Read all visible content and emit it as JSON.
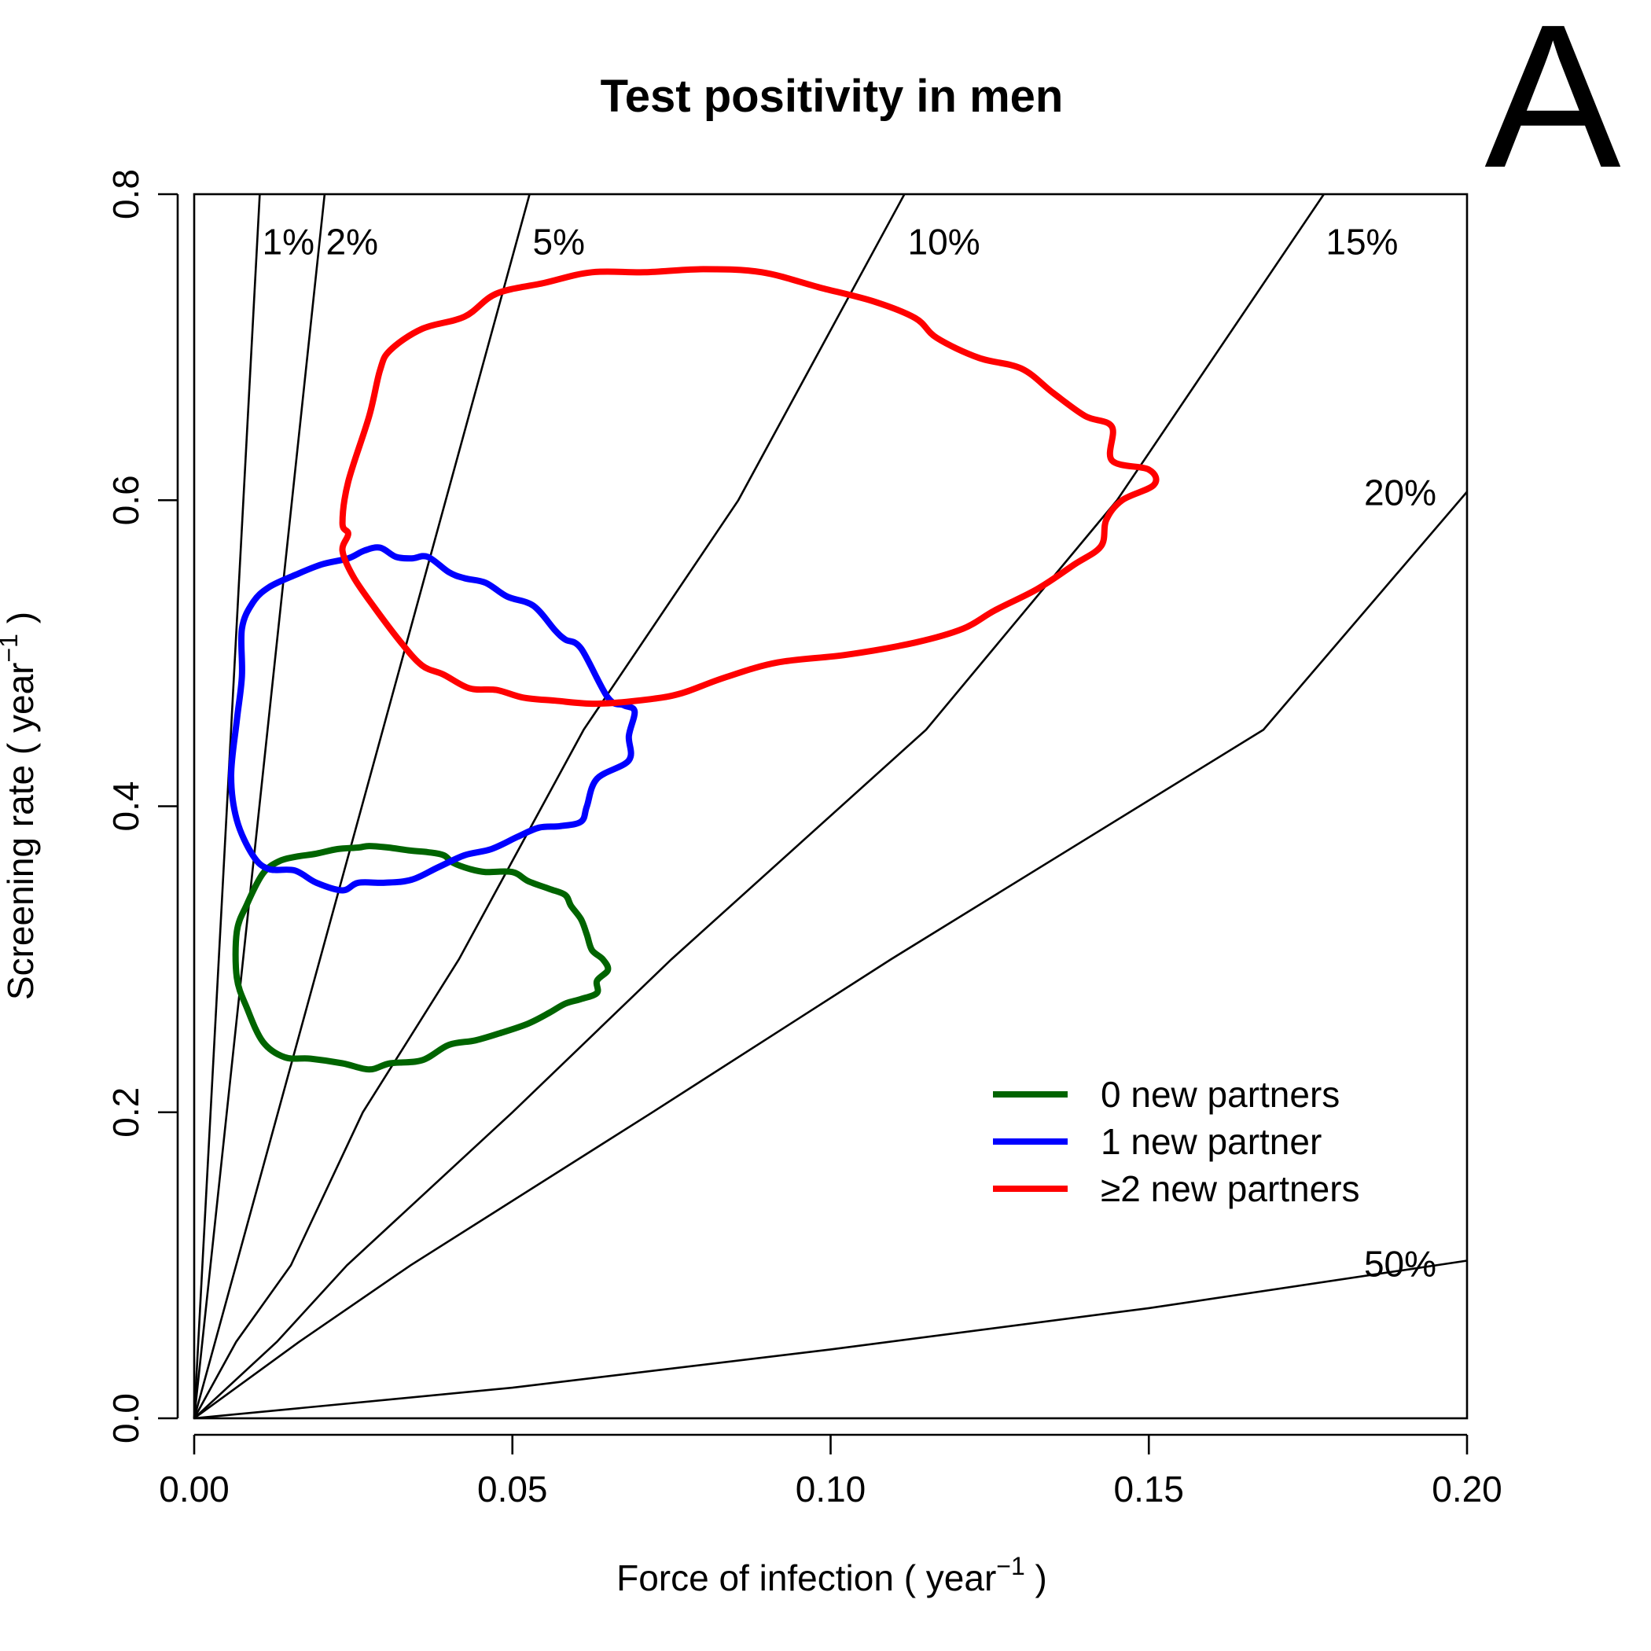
{
  "chart_data": {
    "type": "line",
    "title": "Test positivity in men",
    "panel_label": "A",
    "xlabel": "Force of infection ( year",
    "ylabel": "Screening rate ( year",
    "label_superscript": "−1",
    "label_close": " )",
    "xlim": [
      0,
      0.2
    ],
    "ylim": [
      0,
      0.8
    ],
    "xticks": [
      {
        "value": 0.0,
        "label": "0.00"
      },
      {
        "value": 0.05,
        "label": "0.05"
      },
      {
        "value": 0.1,
        "label": "0.10"
      },
      {
        "value": 0.15,
        "label": "0.15"
      },
      {
        "value": 0.2,
        "label": "0.20"
      }
    ],
    "yticks": [
      {
        "value": 0.0,
        "label": "0.0"
      },
      {
        "value": 0.2,
        "label": "0.2"
      },
      {
        "value": 0.4,
        "label": "0.4"
      },
      {
        "value": 0.6,
        "label": "0.6"
      },
      {
        "value": 0.8,
        "label": "0.8"
      }
    ],
    "grid": false,
    "legend_position": "bottom-right",
    "positivity_lines": [
      {
        "label": "1%",
        "x": [
          0,
          0.0103
        ],
        "y": [
          0,
          0.8
        ],
        "label_x": 0.0148,
        "label_y": 0.769
      },
      {
        "label": "2%",
        "x": [
          0,
          0.0205
        ],
        "y": [
          0,
          0.8
        ],
        "label_x": 0.0248,
        "label_y": 0.769
      },
      {
        "label": "5%",
        "x": [
          0,
          0.0527
        ],
        "y": [
          0,
          0.8
        ],
        "label_x": 0.0573,
        "label_y": 0.769
      },
      {
        "label": "10%",
        "x": [
          0,
          0.0066,
          0.0152,
          0.0265,
          0.0416,
          0.0612,
          0.0855,
          0.1116
        ],
        "y": [
          0,
          0.05,
          0.1,
          0.2,
          0.3,
          0.45,
          0.6,
          0.8
        ],
        "label_x": 0.1178,
        "label_y": 0.769
      },
      {
        "label": "15%",
        "x": [
          0,
          0.013,
          0.024,
          0.05,
          0.075,
          0.115,
          0.145,
          0.1775
        ],
        "y": [
          0,
          0.05,
          0.1,
          0.2,
          0.3,
          0.45,
          0.6,
          0.8
        ],
        "label_x": 0.1835,
        "label_y": 0.769
      },
      {
        "label": "20%",
        "x": [
          0,
          0.0165,
          0.034,
          0.072,
          0.1095,
          0.168,
          0.2
        ],
        "y": [
          0,
          0.05,
          0.1,
          0.2,
          0.3,
          0.45,
          0.6055
        ],
        "label_x": 0.1895,
        "label_y": 0.605
      },
      {
        "label": "50%",
        "x": [
          0,
          0.05,
          0.1,
          0.15,
          0.2
        ],
        "y": [
          0,
          0.02,
          0.045,
          0.072,
          0.103
        ],
        "label_x": 0.1895,
        "label_y": 0.101
      }
    ],
    "series": [
      {
        "name": "0 new partners",
        "color": "#006400",
        "x": [
          0.0108,
          0.0133,
          0.016,
          0.0192,
          0.0225,
          0.0258,
          0.0275,
          0.0305,
          0.034,
          0.0367,
          0.0392,
          0.0407,
          0.0433,
          0.0458,
          0.05,
          0.0525,
          0.0558,
          0.0583,
          0.0592,
          0.0608,
          0.0617,
          0.0625,
          0.0642,
          0.065,
          0.0633,
          0.0633,
          0.0608,
          0.0583,
          0.0558,
          0.0525,
          0.0483,
          0.0442,
          0.04,
          0.0358,
          0.0308,
          0.0275,
          0.0233,
          0.0183,
          0.0142,
          0.0108,
          0.0083,
          0.0067,
          0.0067,
          0.0083,
          0.0108
        ],
        "y": [
          0.356,
          0.364,
          0.367,
          0.369,
          0.372,
          0.373,
          0.374,
          0.373,
          0.371,
          0.37,
          0.368,
          0.363,
          0.359,
          0.357,
          0.357,
          0.351,
          0.346,
          0.342,
          0.335,
          0.326,
          0.316,
          0.306,
          0.3,
          0.293,
          0.286,
          0.278,
          0.274,
          0.271,
          0.265,
          0.258,
          0.252,
          0.247,
          0.244,
          0.234,
          0.232,
          0.228,
          0.232,
          0.235,
          0.236,
          0.246,
          0.268,
          0.288,
          0.318,
          0.336,
          0.356
        ]
      },
      {
        "name": "1 new partner",
        "color": "#0000ff",
        "x": [
          0.0075,
          0.0092,
          0.0117,
          0.0158,
          0.02,
          0.0242,
          0.0267,
          0.0292,
          0.0317,
          0.0342,
          0.0367,
          0.04,
          0.0425,
          0.0458,
          0.0492,
          0.0533,
          0.0567,
          0.0583,
          0.0608,
          0.065,
          0.0675,
          0.0692,
          0.0683,
          0.0683,
          0.0633,
          0.0617,
          0.0608,
          0.0575,
          0.0542,
          0.0508,
          0.0467,
          0.0425,
          0.0383,
          0.0342,
          0.03,
          0.0258,
          0.0233,
          0.0192,
          0.0158,
          0.0117,
          0.0092,
          0.0067,
          0.0058,
          0.0067,
          0.0075,
          0.0075
        ],
        "y": [
          0.516,
          0.533,
          0.543,
          0.551,
          0.558,
          0.562,
          0.567,
          0.569,
          0.563,
          0.562,
          0.563,
          0.553,
          0.549,
          0.546,
          0.537,
          0.531,
          0.515,
          0.509,
          0.503,
          0.471,
          0.466,
          0.462,
          0.446,
          0.43,
          0.418,
          0.4,
          0.39,
          0.387,
          0.386,
          0.38,
          0.372,
          0.368,
          0.36,
          0.352,
          0.35,
          0.35,
          0.345,
          0.35,
          0.358,
          0.359,
          0.368,
          0.391,
          0.42,
          0.456,
          0.485,
          0.516
        ]
      },
      {
        "name": "≥2 new partners",
        "color": "#ff0000",
        "x": [
          0.0292,
          0.0308,
          0.0358,
          0.0425,
          0.0475,
          0.055,
          0.0625,
          0.0708,
          0.08,
          0.0892,
          0.0983,
          0.1067,
          0.1133,
          0.1167,
          0.1233,
          0.13,
          0.135,
          0.14,
          0.1442,
          0.1442,
          0.15,
          0.1508,
          0.1458,
          0.1433,
          0.1425,
          0.1383,
          0.1325,
          0.1258,
          0.1208,
          0.1133,
          0.1025,
          0.0917,
          0.0833,
          0.0767,
          0.0717,
          0.0633,
          0.0567,
          0.0517,
          0.0475,
          0.0433,
          0.0392,
          0.0358,
          0.0325,
          0.0283,
          0.025,
          0.0233,
          0.0242,
          0.0233,
          0.0242,
          0.0275,
          0.0292
        ],
        "y": [
          0.685,
          0.698,
          0.712,
          0.72,
          0.735,
          0.742,
          0.749,
          0.749,
          0.751,
          0.749,
          0.739,
          0.73,
          0.719,
          0.706,
          0.693,
          0.686,
          0.67,
          0.655,
          0.648,
          0.626,
          0.62,
          0.61,
          0.6,
          0.587,
          0.57,
          0.558,
          0.542,
          0.528,
          0.516,
          0.507,
          0.499,
          0.494,
          0.484,
          0.474,
          0.47,
          0.467,
          0.469,
          0.471,
          0.476,
          0.477,
          0.486,
          0.492,
          0.507,
          0.53,
          0.55,
          0.567,
          0.578,
          0.585,
          0.612,
          0.655,
          0.685
        ]
      }
    ]
  }
}
